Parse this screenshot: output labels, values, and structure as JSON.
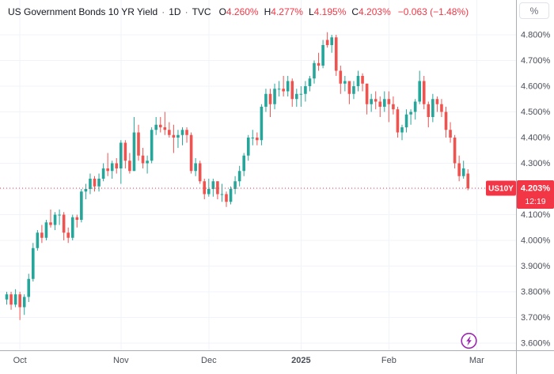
{
  "header": {
    "title": "US Government Bonds 10 YR Yield",
    "dot": "·",
    "interval": "1D",
    "exchange": "TVC",
    "ohlc": [
      {
        "k": "O",
        "v": "4.260%"
      },
      {
        "k": "H",
        "v": "4.277%"
      },
      {
        "k": "L",
        "v": "4.195%"
      },
      {
        "k": "C",
        "v": "4.203%"
      }
    ],
    "change": "−0.063 (−1.48%)"
  },
  "toolbar": {
    "percent_label": "%"
  },
  "colors": {
    "bg": "#ffffff",
    "text": "#131722",
    "up": "#26a69a",
    "down": "#ef5350",
    "badge_red": "#f23645",
    "legend_value_red": "#f23645",
    "grid": "#f0f3fa",
    "axis_line": "#a9adb5",
    "axis_text": "#4a4e59",
    "boost_purple": "#9c27b0",
    "last_price_line": "#f23645"
  },
  "chart_data": {
    "type": "candlestick",
    "title": "US Government Bonds 10 YR Yield",
    "interval": "1D",
    "exchange": "TVC",
    "last": {
      "symbol": "US10Y",
      "price": 4.203,
      "price_label": "4.203%",
      "time_label": "12:19"
    },
    "yaxis": {
      "unit": "%",
      "ylim": [
        3.55,
        4.85
      ],
      "ticks": [
        {
          "v": 4.8,
          "label": "4.800%"
        },
        {
          "v": 4.7,
          "label": "4.700%"
        },
        {
          "v": 4.6,
          "label": "4.600%"
        },
        {
          "v": 4.5,
          "label": "4.500%"
        },
        {
          "v": 4.4,
          "label": "4.400%"
        },
        {
          "v": 4.3,
          "label": "4.300%"
        },
        {
          "v": 4.2,
          "label": ""
        },
        {
          "v": 4.1,
          "label": "4.100%"
        },
        {
          "v": 4.0,
          "label": "4.000%"
        },
        {
          "v": 3.9,
          "label": "3.900%"
        },
        {
          "v": 3.8,
          "label": "3.800%"
        },
        {
          "v": 3.7,
          "label": "3.700%"
        },
        {
          "v": 3.6,
          "label": "3.600%"
        }
      ]
    },
    "xaxis": {
      "ticks": [
        {
          "label": "Oct",
          "i": 3,
          "bold": false
        },
        {
          "label": "Nov",
          "i": 26,
          "bold": false
        },
        {
          "label": "Dec",
          "i": 46,
          "bold": false
        },
        {
          "label": "2025",
          "i": 67,
          "bold": true
        },
        {
          "label": "Feb",
          "i": 87,
          "bold": false
        },
        {
          "label": "Mar",
          "i": 107,
          "bold": false
        }
      ]
    },
    "candles": [
      [
        3.77,
        3.8,
        3.75,
        3.79
      ],
      [
        3.79,
        3.8,
        3.73,
        3.75
      ],
      [
        3.75,
        3.81,
        3.74,
        3.79
      ],
      [
        3.79,
        3.8,
        3.69,
        3.74
      ],
      [
        3.74,
        3.79,
        3.71,
        3.78
      ],
      [
        3.78,
        3.87,
        3.76,
        3.85
      ],
      [
        3.85,
        3.99,
        3.84,
        3.97
      ],
      [
        3.97,
        4.04,
        3.96,
        4.03
      ],
      [
        4.03,
        4.06,
        3.99,
        4.01
      ],
      [
        4.01,
        4.08,
        4.0,
        4.07
      ],
      [
        4.07,
        4.12,
        4.05,
        4.06
      ],
      [
        4.06,
        4.11,
        4.04,
        4.1
      ],
      [
        4.1,
        4.12,
        4.06,
        4.1
      ],
      [
        4.1,
        4.11,
        4.0,
        4.03
      ],
      [
        4.03,
        4.05,
        3.99,
        4.01
      ],
      [
        4.01,
        4.1,
        4.0,
        4.09
      ],
      [
        4.09,
        4.1,
        4.05,
        4.08
      ],
      [
        4.08,
        4.2,
        4.07,
        4.19
      ],
      [
        4.19,
        4.22,
        4.16,
        4.2
      ],
      [
        4.2,
        4.26,
        4.18,
        4.24
      ],
      [
        4.24,
        4.25,
        4.19,
        4.21
      ],
      [
        4.21,
        4.26,
        4.19,
        4.24
      ],
      [
        4.24,
        4.3,
        4.23,
        4.28
      ],
      [
        4.28,
        4.34,
        4.25,
        4.27
      ],
      [
        4.27,
        4.31,
        4.24,
        4.3
      ],
      [
        4.3,
        4.32,
        4.26,
        4.28
      ],
      [
        4.28,
        4.39,
        4.22,
        4.38
      ],
      [
        4.38,
        4.39,
        4.28,
        4.31
      ],
      [
        4.31,
        4.34,
        4.26,
        4.27
      ],
      [
        4.27,
        4.48,
        4.27,
        4.42
      ],
      [
        4.42,
        4.45,
        4.31,
        4.33
      ],
      [
        4.33,
        4.36,
        4.28,
        4.3
      ],
      [
        4.3,
        4.33,
        4.26,
        4.31
      ],
      [
        4.31,
        4.44,
        4.3,
        4.43
      ],
      [
        4.43,
        4.48,
        4.41,
        4.45
      ],
      [
        4.45,
        4.48,
        4.42,
        4.44
      ],
      [
        4.44,
        4.5,
        4.41,
        4.43
      ],
      [
        4.43,
        4.46,
        4.4,
        4.41
      ],
      [
        4.41,
        4.45,
        4.34,
        4.4
      ],
      [
        4.4,
        4.43,
        4.36,
        4.41
      ],
      [
        4.41,
        4.44,
        4.37,
        4.43
      ],
      [
        4.43,
        4.44,
        4.38,
        4.41
      ],
      [
        4.41,
        4.42,
        4.26,
        4.27
      ],
      [
        4.27,
        4.32,
        4.25,
        4.3
      ],
      [
        4.3,
        4.31,
        4.22,
        4.23
      ],
      [
        4.23,
        4.24,
        4.16,
        4.18
      ],
      [
        4.18,
        4.24,
        4.17,
        4.2
      ],
      [
        4.2,
        4.24,
        4.17,
        4.23
      ],
      [
        4.23,
        4.23,
        4.16,
        4.18
      ],
      [
        4.18,
        4.22,
        4.15,
        4.18
      ],
      [
        4.18,
        4.19,
        4.13,
        4.15
      ],
      [
        4.15,
        4.21,
        4.14,
        4.2
      ],
      [
        4.2,
        4.25,
        4.18,
        4.23
      ],
      [
        4.23,
        4.29,
        4.21,
        4.27
      ],
      [
        4.27,
        4.34,
        4.25,
        4.33
      ],
      [
        4.33,
        4.41,
        4.31,
        4.4
      ],
      [
        4.4,
        4.43,
        4.37,
        4.4
      ],
      [
        4.4,
        4.42,
        4.37,
        4.39
      ],
      [
        4.39,
        4.53,
        4.37,
        4.52
      ],
      [
        4.52,
        4.59,
        4.5,
        4.57
      ],
      [
        4.57,
        4.59,
        4.48,
        4.53
      ],
      [
        4.53,
        4.61,
        4.51,
        4.59
      ],
      [
        4.59,
        4.62,
        4.56,
        4.59
      ],
      [
        4.59,
        4.64,
        4.56,
        4.58
      ],
      [
        4.58,
        4.64,
        4.56,
        4.62
      ],
      [
        4.62,
        4.63,
        4.52,
        4.55
      ],
      [
        4.55,
        4.59,
        4.52,
        4.57
      ],
      [
        4.57,
        4.6,
        4.52,
        4.57
      ],
      [
        4.57,
        4.62,
        4.54,
        4.6
      ],
      [
        4.6,
        4.64,
        4.58,
        4.63
      ],
      [
        4.63,
        4.7,
        4.61,
        4.69
      ],
      [
        4.69,
        4.73,
        4.66,
        4.68
      ],
      [
        4.68,
        4.78,
        4.67,
        4.76
      ],
      [
        4.78,
        4.81,
        4.75,
        4.76
      ],
      [
        4.76,
        4.8,
        4.73,
        4.79
      ],
      [
        4.79,
        4.8,
        4.64,
        4.66
      ],
      [
        4.66,
        4.68,
        4.57,
        4.61
      ],
      [
        4.61,
        4.64,
        4.58,
        4.62
      ],
      [
        4.62,
        4.62,
        4.53,
        4.57
      ],
      [
        4.57,
        4.62,
        4.55,
        4.6
      ],
      [
        4.6,
        4.66,
        4.58,
        4.64
      ],
      [
        4.64,
        4.65,
        4.58,
        4.61
      ],
      [
        4.61,
        4.61,
        4.49,
        4.53
      ],
      [
        4.53,
        4.57,
        4.5,
        4.55
      ],
      [
        4.55,
        4.58,
        4.51,
        4.54
      ],
      [
        4.54,
        4.56,
        4.48,
        4.52
      ],
      [
        4.52,
        4.58,
        4.5,
        4.55
      ],
      [
        4.55,
        4.58,
        4.46,
        4.53
      ],
      [
        4.53,
        4.56,
        4.49,
        4.51
      ],
      [
        4.51,
        4.52,
        4.4,
        4.42
      ],
      [
        4.42,
        4.45,
        4.39,
        4.44
      ],
      [
        4.44,
        4.51,
        4.42,
        4.49
      ],
      [
        4.49,
        4.51,
        4.45,
        4.5
      ],
      [
        4.5,
        4.55,
        4.47,
        4.54
      ],
      [
        4.54,
        4.66,
        4.53,
        4.62
      ],
      [
        4.62,
        4.64,
        4.51,
        4.53
      ],
      [
        4.53,
        4.54,
        4.44,
        4.48
      ],
      [
        4.48,
        4.57,
        4.46,
        4.55
      ],
      [
        4.55,
        4.56,
        4.5,
        4.53
      ],
      [
        4.53,
        4.55,
        4.48,
        4.5
      ],
      [
        4.5,
        4.52,
        4.4,
        4.43
      ],
      [
        4.43,
        4.46,
        4.38,
        4.4
      ],
      [
        4.4,
        4.41,
        4.28,
        4.3
      ],
      [
        4.3,
        4.33,
        4.23,
        4.25
      ],
      [
        4.25,
        4.31,
        4.24,
        4.28
      ],
      [
        4.26,
        4.277,
        4.195,
        4.203
      ]
    ]
  }
}
